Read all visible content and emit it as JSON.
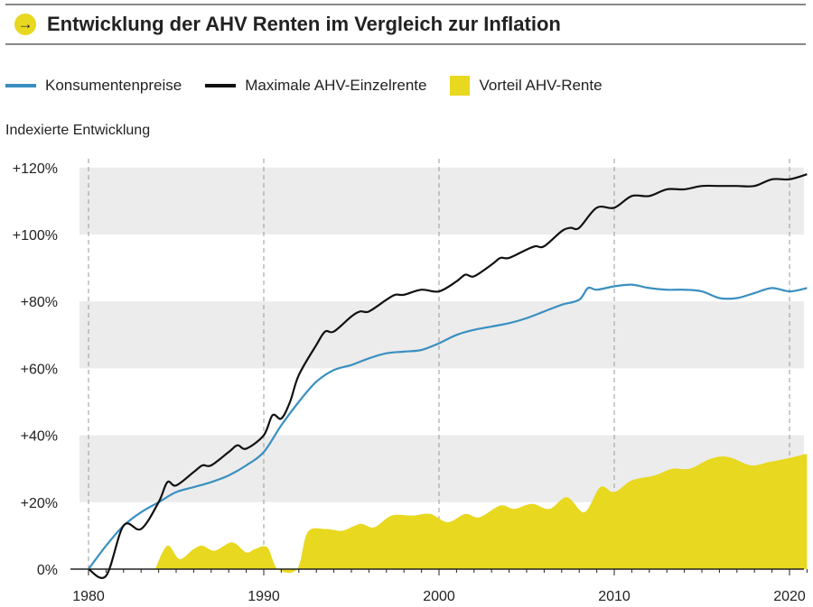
{
  "header": {
    "title": "Entwicklung der AHV Renten im Vergleich zur Inflation",
    "icon": "arrow-right-icon"
  },
  "colors": {
    "cpi": "#3a8fc0",
    "ahv": "#111111",
    "advantage": "#e8d820",
    "band": "#ececec",
    "accent": "#e8d820"
  },
  "chart_data": {
    "type": "line",
    "title": "Entwicklung der AHV Renten im Vergleich zur Inflation",
    "ylabel": "Indexierte Entwicklung",
    "xlabel": "",
    "xlim": [
      1980,
      2021
    ],
    "ylim": [
      0,
      120
    ],
    "x_ticks": [
      "1980",
      "1990",
      "2000",
      "2010",
      "2020"
    ],
    "y_ticks": [
      "0%",
      "+20%",
      "+40%",
      "+60%",
      "+80%",
      "+100%",
      "+120%"
    ],
    "legend_position": "top-left",
    "series": [
      {
        "name": "Konsumentenpreise",
        "type": "line",
        "x": [
          1980,
          1981,
          1982,
          1983,
          1984,
          1985,
          1986,
          1987,
          1988,
          1989,
          1990,
          1991,
          1992,
          1993,
          1994,
          1995,
          1996,
          1997,
          1998,
          1999,
          2000,
          2001,
          2002,
          2003,
          2004,
          2005,
          2006,
          2007,
          2008,
          2008.5,
          2009,
          2010,
          2011,
          2012,
          2013,
          2014,
          2015,
          2016,
          2017,
          2018,
          2019,
          2020,
          2021
        ],
        "y": [
          0,
          7,
          13,
          17,
          20,
          23,
          24.5,
          26,
          28,
          31,
          35,
          43,
          50,
          56,
          59.5,
          61,
          63,
          64.5,
          65,
          65.5,
          67.5,
          70,
          71.5,
          72.5,
          73.5,
          75,
          77,
          79,
          80.5,
          84,
          83.5,
          84.5,
          85,
          84,
          83.5,
          83.5,
          83,
          81,
          81,
          82.5,
          84,
          83,
          84
        ]
      },
      {
        "name": "Maximale AHV-Einzelrente",
        "type": "line",
        "x": [
          1980,
          1981,
          1982,
          1983,
          1984,
          1984.5,
          1985,
          1986,
          1986.5,
          1987,
          1988,
          1988.5,
          1989,
          1990,
          1990.5,
          1991,
          1991.5,
          1992,
          1993,
          1993.5,
          1994,
          1995,
          1995.5,
          1996,
          1997,
          1997.5,
          1998,
          1999,
          2000,
          2001,
          2001.5,
          2002,
          2003,
          2003.5,
          2004,
          2005,
          2005.5,
          2006,
          2007,
          2007.5,
          2008,
          2009,
          2010,
          2011,
          2012,
          2013,
          2014,
          2015,
          2016,
          2017,
          2018,
          2019,
          2020,
          2021
        ],
        "y": [
          0,
          -2,
          13,
          12,
          20,
          26,
          25,
          29,
          31,
          31,
          35,
          37,
          36,
          40,
          46,
          45,
          50,
          58,
          67,
          71,
          71,
          75.5,
          77,
          77,
          80.5,
          82,
          82,
          83.5,
          83,
          86,
          88,
          87.5,
          91,
          93,
          93,
          95.5,
          96.5,
          96.5,
          101,
          102,
          102,
          108,
          108,
          111.5,
          111.5,
          113.5,
          113.5,
          114.5,
          114.5,
          114.5,
          114.5,
          116.5,
          116.5,
          118
        ]
      },
      {
        "name": "Vorteil AHV-Rente",
        "type": "area",
        "x": [
          1983.8,
          1984.5,
          1985.2,
          1986,
          1986.5,
          1987.2,
          1988.2,
          1989,
          1989.5,
          1990.2,
          1990.8,
          1991.9,
          1992.5,
          1993.5,
          1994.5,
          1995.5,
          1996.3,
          1997.3,
          1998.5,
          1999.5,
          2000.5,
          2001.5,
          2002.3,
          2003.5,
          2004.3,
          2005.3,
          2006.3,
          2007.3,
          2008.3,
          2009.2,
          2010,
          2011,
          2012.3,
          2013.3,
          2014.3,
          2015.5,
          2016.5,
          2017.8,
          2018.8,
          2019.8,
          2021
        ],
        "y": [
          0,
          7,
          3,
          6,
          7,
          5.5,
          8,
          5,
          6,
          6.5,
          0,
          0,
          11,
          12,
          11.5,
          13.5,
          12.5,
          16,
          16,
          16.5,
          14,
          16.5,
          15.5,
          19,
          18,
          19.5,
          18,
          21.5,
          17,
          24.5,
          23,
          26.5,
          28,
          30,
          30,
          33,
          33.5,
          31,
          32,
          33,
          34.5
        ]
      }
    ]
  }
}
